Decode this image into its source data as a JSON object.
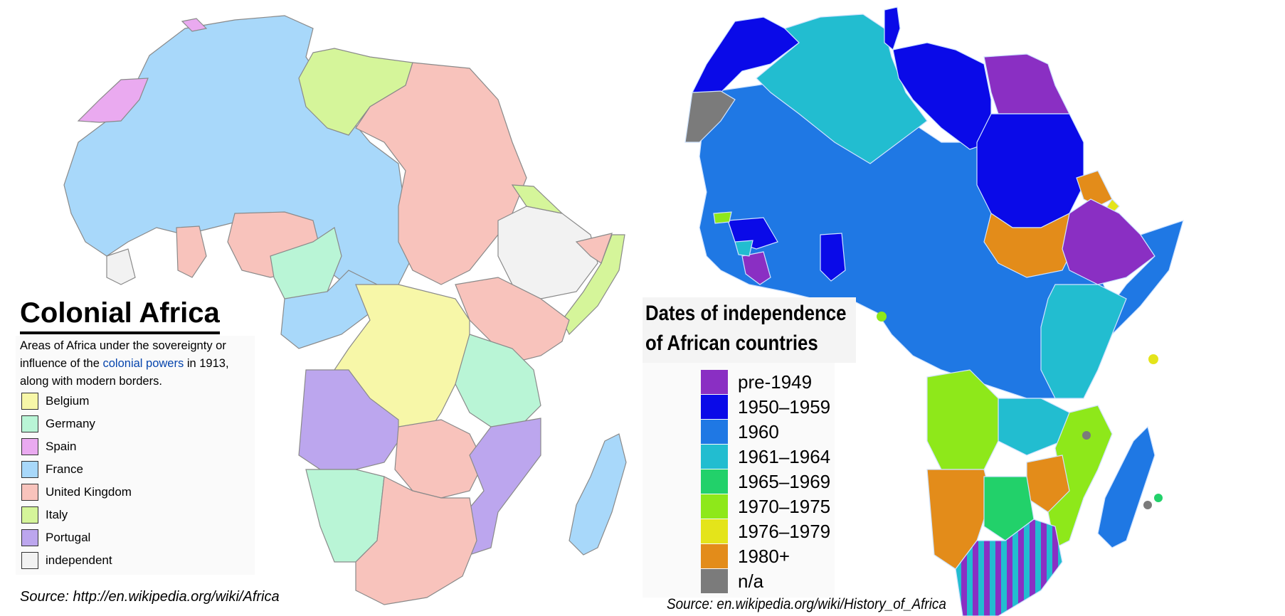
{
  "colors": {
    "belgium": "#f7f7a8",
    "germany": "#b9f5d6",
    "spain": "#eaaaf0",
    "france": "#a8d8fa",
    "united_kingdom": "#f8c3bc",
    "italy": "#d5f59a",
    "portugal": "#bca6ee",
    "independent": "#f2f2f2",
    "pre_1949": "#8a2fc3",
    "y1950_1959": "#0a0ae8",
    "y1960": "#1f78e4",
    "y1961_1964": "#22bdd0",
    "y1965_1969": "#22d16a",
    "y1970_1975": "#8ee81a",
    "y1976_1979": "#e4e41a",
    "y1980_plus": "#e38c1a",
    "na": "#7b7b7b"
  },
  "left_map": {
    "title": "Colonial Africa",
    "description_before": "Areas of Africa under the sovereignty or influence of the ",
    "description_link": "colonial powers",
    "description_after": " in 1913, along with modern borders.",
    "legend": [
      {
        "label": "Belgium",
        "color": "#f7f7a8"
      },
      {
        "label": "Germany",
        "color": "#b9f5d6"
      },
      {
        "label": "Spain",
        "color": "#eaaaf0"
      },
      {
        "label": "France",
        "color": "#a8d8fa"
      },
      {
        "label": "United Kingdom",
        "color": "#f8c3bc"
      },
      {
        "label": "Italy",
        "color": "#d5f59a"
      },
      {
        "label": "Portugal",
        "color": "#bca6ee"
      },
      {
        "label": "independent",
        "color": "#f2f2f2"
      }
    ],
    "source": "Source: http://en.wikipedia.org/wiki/Africa"
  },
  "right_map": {
    "title_line1": "Dates of independence",
    "title_line2": "of African countries",
    "legend": [
      {
        "label": "pre-1949",
        "color": "#8a2fc3"
      },
      {
        "label": "1950–1959",
        "color": "#0a0ae8"
      },
      {
        "label": "1960",
        "color": "#1f78e4"
      },
      {
        "label": "1961–1964",
        "color": "#22bdd0"
      },
      {
        "label": "1965–1969",
        "color": "#22d16a"
      },
      {
        "label": "1970–1975",
        "color": "#8ee81a"
      },
      {
        "label": "1976–1979",
        "color": "#e4e41a"
      },
      {
        "label": "1980+",
        "color": "#e38c1a"
      },
      {
        "label": "n/a",
        "color": "#7b7b7b"
      }
    ],
    "source": "Source: en.wikipedia.org/wiki/History_of_Africa"
  }
}
